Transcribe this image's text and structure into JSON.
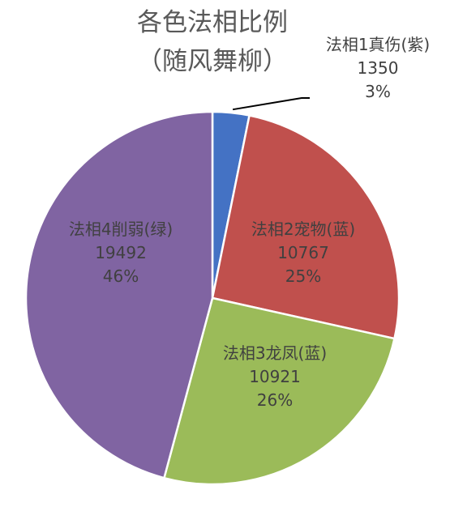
{
  "chart_data": {
    "type": "pie",
    "title": "各色法相比例",
    "subtitle": "（随风舞柳）",
    "slices": [
      {
        "name": "法相1真伤(紫)",
        "value": 1350,
        "percent": "3%",
        "color": "#4472C4"
      },
      {
        "name": "法相2宠物(蓝)",
        "value": 10767,
        "percent": "25%",
        "color": "#C0504D"
      },
      {
        "name": "法相3龙凤(蓝)",
        "value": 10921,
        "percent": "26%",
        "color": "#9BBB59"
      },
      {
        "name": "法相4削弱(绿)",
        "value": 19492,
        "percent": "46%",
        "color": "#8064A2"
      }
    ]
  }
}
